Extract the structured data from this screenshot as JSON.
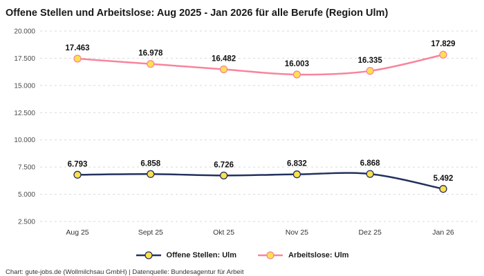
{
  "footer": "Chart: gute-jobs.de (Wollmilchsau GmbH) | Datenquelle: Bundesagentur für Arbeit",
  "chart_data": {
    "type": "line",
    "title": "Offene Stellen und Arbeitslose: Aug 2025 - Jan 2026 für alle Berufe (Region Ulm)",
    "categories": [
      "Aug 25",
      "Sept 25",
      "Okt 25",
      "Nov 25",
      "Dez 25",
      "Jan 26"
    ],
    "series": [
      {
        "name": "Offene Stellen: Ulm",
        "color": "#22315e",
        "values": [
          6793,
          6858,
          6726,
          6832,
          6868,
          5492
        ]
      },
      {
        "name": "Arbeitslose: Ulm",
        "color": "#f8849b",
        "values": [
          17463,
          16978,
          16482,
          16003,
          16335,
          17829
        ]
      }
    ],
    "marker_fill": "#ffe04d",
    "ylim": [
      2500,
      20000
    ],
    "yticks": [
      2500,
      5000,
      7500,
      10000,
      12500,
      15000,
      17500,
      20000
    ],
    "grid": "dashed-horizontal",
    "legend_position": "bottom",
    "xlabel": "",
    "ylabel": ""
  }
}
